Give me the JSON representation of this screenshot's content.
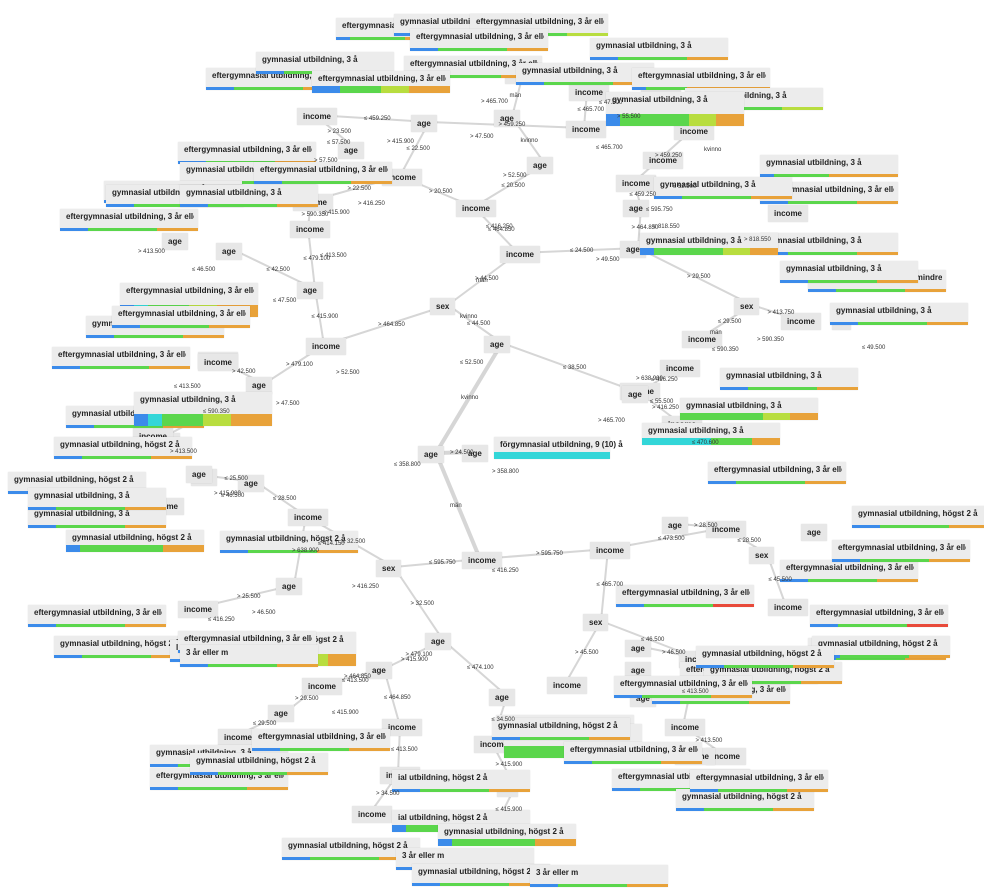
{
  "colors": {
    "blue": "#3b8bea",
    "cyan": "#33d6d8",
    "teal": "#46c9b8",
    "green": "#5bd64c",
    "lime": "#b8dd3f",
    "orange": "#e8a23a",
    "red": "#e84a3a",
    "edge": "#d6d6d6",
    "node_bg": "#e7e7e7"
  },
  "nodes": [
    {
      "id": "root",
      "label": "age"
    },
    {
      "id": "n_age_sm",
      "label": "age"
    },
    {
      "id": "n_top_income",
      "label": "income"
    },
    {
      "id": "n_top_sex",
      "label": "sex"
    },
    {
      "id": "n_top_age",
      "label": "age"
    },
    {
      "id": "n_k_income",
      "label": "income"
    },
    {
      "id": "n_k_age1",
      "label": "age"
    },
    {
      "id": "n_k_age2",
      "label": "age"
    },
    {
      "id": "n_k_income2",
      "label": "income"
    },
    {
      "id": "n_k_income3",
      "label": "income"
    },
    {
      "id": "n_k_age3",
      "label": "age"
    },
    {
      "id": "n_k_income4",
      "label": "income"
    },
    {
      "id": "n_k_age4",
      "label": "age"
    },
    {
      "id": "n_m_income",
      "label": "income"
    },
    {
      "id": "n_m_income2",
      "label": "income"
    },
    {
      "id": "n_m_income3",
      "label": "income"
    },
    {
      "id": "n_m_age",
      "label": "age"
    },
    {
      "id": "n_m_income4",
      "label": "income"
    },
    {
      "id": "n_m_age2",
      "label": "age"
    },
    {
      "id": "n_m_income5",
      "label": "income"
    },
    {
      "id": "n_m_income6",
      "label": "income"
    },
    {
      "id": "n_m_income7",
      "label": "income"
    },
    {
      "id": "n_m_age3",
      "label": "age"
    },
    {
      "id": "n_m_income8",
      "label": "income"
    },
    {
      "id": "n_r_age",
      "label": "age"
    },
    {
      "id": "n_r_income",
      "label": "income"
    },
    {
      "id": "n_r_sex",
      "label": "sex"
    },
    {
      "id": "n_r_income2",
      "label": "income"
    },
    {
      "id": "n_r_income3",
      "label": "income"
    },
    {
      "id": "n_r_income4",
      "label": "in"
    },
    {
      "id": "n_r_age2",
      "label": "age"
    },
    {
      "id": "n_r_age3",
      "label": "age"
    },
    {
      "id": "n_r_income5",
      "label": "income"
    },
    {
      "id": "n_r_income6",
      "label": "income"
    },
    {
      "id": "n_r_income7",
      "label": "income"
    },
    {
      "id": "n_r_income8",
      "label": "income"
    },
    {
      "id": "n_r_income9",
      "label": "income"
    },
    {
      "id": "n_r_income10",
      "label": "income"
    },
    {
      "id": "n_r_age4",
      "label": "age"
    },
    {
      "id": "n_b_income",
      "label": "income"
    },
    {
      "id": "n_b_sex",
      "label": "sex"
    },
    {
      "id": "n_b_income2",
      "label": "income"
    },
    {
      "id": "n_b_age",
      "label": "age"
    },
    {
      "id": "n_b_age2",
      "label": "age"
    },
    {
      "id": "n_b_age3",
      "label": "age"
    },
    {
      "id": "n_b_income3",
      "label": "income"
    },
    {
      "id": "n_b_age4",
      "label": "age"
    },
    {
      "id": "n_b_income4",
      "label": "income"
    },
    {
      "id": "n_b_age5",
      "label": "age"
    },
    {
      "id": "n_b_income5",
      "label": "income"
    },
    {
      "id": "n_b_age6",
      "label": "age"
    },
    {
      "id": "n_b_income6",
      "label": "income"
    },
    {
      "id": "n_b_age7",
      "label": "age"
    },
    {
      "id": "n_b_income7",
      "label": "income"
    },
    {
      "id": "n_b_income8",
      "label": "income"
    },
    {
      "id": "n_b_income9",
      "label": "income"
    },
    {
      "id": "n_b_income10",
      "label": "income"
    },
    {
      "id": "n_b_income11",
      "label": "income"
    },
    {
      "id": "n_b_income12",
      "label": "ne"
    },
    {
      "id": "n_b_income13",
      "label": "income"
    },
    {
      "id": "n_b_income14",
      "label": "income"
    },
    {
      "id": "n_br_income",
      "label": "income"
    },
    {
      "id": "n_br_income2",
      "label": "income"
    },
    {
      "id": "n_br_sex",
      "label": "sex"
    },
    {
      "id": "n_br_age",
      "label": "age"
    },
    {
      "id": "n_br_sex2",
      "label": "sex"
    },
    {
      "id": "n_br_income3",
      "label": "income"
    },
    {
      "id": "n_br_income4",
      "label": "income"
    },
    {
      "id": "n_br_age2",
      "label": "age"
    },
    {
      "id": "n_br_income5",
      "label": "income"
    },
    {
      "id": "n_br_income6",
      "label": "income"
    },
    {
      "id": "n_br_age3",
      "label": "age"
    },
    {
      "id": "n_br_age4",
      "label": "age"
    },
    {
      "id": "n_br_income7",
      "label": "income"
    },
    {
      "id": "n_br_age5",
      "label": "age"
    },
    {
      "id": "n_br_income8",
      "label": "income"
    },
    {
      "id": "n_l_age",
      "label": "age"
    },
    {
      "id": "n_l_age2",
      "label": "age"
    },
    {
      "id": "n_l_income",
      "label": "income"
    },
    {
      "id": "n_l_income2",
      "label": "income"
    }
  ],
  "leaves": [
    {
      "id": "L_forgym",
      "label": "förgymnasial utbildning, 9 (10) å"
    },
    {
      "id": "L1",
      "label": "eftergymnasial utbildning, 3 år eller m"
    },
    {
      "id": "L2",
      "label": "gymnasial utbildning, 3 å"
    },
    {
      "id": "L3",
      "label": "eftergymnasial utbildning, 3 år eller m"
    },
    {
      "id": "L4",
      "label": "gymnasial utbildning, 3 å"
    },
    {
      "id": "L5",
      "label": "eftergymnasial utbildning, 3 år eller m"
    },
    {
      "id": "L6",
      "label": "gymnasial utbildning, 3 å"
    },
    {
      "id": "L7",
      "label": "eftergymnasial utbildning, 3 år eller m"
    },
    {
      "id": "L8",
      "label": "gymnasial utbildning, 3 å"
    },
    {
      "id": "L9",
      "label": "eftergymnasial utbildning, 3 år eller m"
    },
    {
      "id": "L10",
      "label": "gymnasial utbildning, 3 å"
    },
    {
      "id": "L11",
      "label": "eftergymnasial utbildning, 3 år eller m"
    },
    {
      "id": "L12",
      "label": "gymnasial utbildning, 3 å"
    },
    {
      "id": "L13",
      "label": "eftergymnasial utbildning, 3 år eller m"
    },
    {
      "id": "L14",
      "label": "gymnasial utbildning, 3 å"
    },
    {
      "id": "L15",
      "label": "eftergymnasial utbildning, 3 år eller m"
    },
    {
      "id": "L16",
      "label": "gymnasial utbildning, 3 å"
    },
    {
      "id": "L17",
      "label": "eftergymnasial utbildning, 3 år eller m"
    },
    {
      "id": "L18",
      "label": "gymnasial utbildning, 3 å"
    },
    {
      "id": "L19",
      "label": "eftergymnasial utbildning, 3 år eller m"
    },
    {
      "id": "L20",
      "label": "gymnasial utbildning, 3 å"
    },
    {
      "id": "L21",
      "label": "gymnasial utbildning, 3 å"
    },
    {
      "id": "L22",
      "label": "eftergymnasial utbildning, 3 år eller m"
    },
    {
      "id": "L23",
      "label": "gymnasial utbildning, 3 å"
    },
    {
      "id": "L24",
      "label": "eftergymnasial utbildning, mindre än 3 å"
    },
    {
      "id": "L25",
      "label": "gymnasial utbildning, 3 å"
    },
    {
      "id": "L26",
      "label": "gymnasial utbildning, 3 å"
    },
    {
      "id": "L27",
      "label": "gymnasial utbildning, 3 å"
    },
    {
      "id": "L28",
      "label": "gymnasial utbildning, 3 å"
    },
    {
      "id": "L29",
      "label": "gymnasial utbildning, 3 å"
    },
    {
      "id": "L30",
      "label": "gymnasial utbildning, 3 å"
    },
    {
      "id": "L31",
      "label": "eftergymnasial utbildning, 3 år eller m"
    },
    {
      "id": "L32",
      "label": "eftergymnasial utbildning, 3 år eller m"
    },
    {
      "id": "L33",
      "label": "gymnasial utbildning, 3 å"
    },
    {
      "id": "L34",
      "label": "eftergymnasial utbildning, 3 år eller m"
    },
    {
      "id": "L35",
      "label": "gymnasial utbildning, 3 å"
    },
    {
      "id": "L36",
      "label": "eftergymnasial utbildning, 3 år eller m"
    },
    {
      "id": "L37",
      "label": "gymnasial utbildning, 3 å"
    },
    {
      "id": "L38",
      "label": "gymnasial utbildning, högst 2 å"
    },
    {
      "id": "L39",
      "label": "gymnasial utbildning, högst 2 å"
    },
    {
      "id": "L40",
      "label": "gymnasial utbildning, 3 å"
    },
    {
      "id": "L41",
      "label": "gymnasial utbildning, högst 2 å"
    },
    {
      "id": "L42",
      "label": "eftergymnasial utbildning, 3 år eller m"
    },
    {
      "id": "L43",
      "label": "gymnasial utbildning, högst 2 å"
    },
    {
      "id": "L44",
      "label": "gymnasial utbildning, högst 2 å"
    },
    {
      "id": "L45",
      "label": "lldning, 3 år eller m"
    },
    {
      "id": "L46",
      "label": "gymnasial utbildning, 3 å"
    },
    {
      "id": "L47",
      "label": "eftergymnasial utbildning, 3 år eller m"
    },
    {
      "id": "L48",
      "label": "gymnasial utbildning, högst 2 å"
    },
    {
      "id": "L49",
      "label": "eftergymnasial utbildning, 3 år eller m"
    },
    {
      "id": "L50",
      "label": "ial utbildning, högst 2 å"
    },
    {
      "id": "L51",
      "label": "ial utbildning, högst 2 å"
    },
    {
      "id": "L52",
      "label": "gymnasial utbildning, högst 2 å"
    },
    {
      "id": "L53",
      "label": "gymnasial utbildning, högst 2 å"
    },
    {
      "id": "L54",
      "label": "3 år eller m"
    },
    {
      "id": "L55",
      "label": "gymnasial utbildning, högst 2 å"
    },
    {
      "id": "L56",
      "label": "3 år eller m"
    },
    {
      "id": "L57",
      "label": "eftergymnasial utbildning, 3 år eller m"
    },
    {
      "id": "L58",
      "label": "gymnasial utbildning, högst 2 å"
    },
    {
      "id": "L59",
      "label": "eftergymnasial utbildning, 3 år eller m"
    },
    {
      "id": "L60",
      "label": "gymnasial utbildning, högst 2 å"
    },
    {
      "id": "L61",
      "label": "eftergymnasial utbildning, 3 år eller m"
    },
    {
      "id": "L62",
      "label": "gymnasial utbildning, högst 2 å"
    },
    {
      "id": "L63",
      "label": "eftergymnasial utbildning, 3 år eller m"
    },
    {
      "id": "L64",
      "label": "eftergymnasial utbildning, 3 år eller m"
    },
    {
      "id": "L65",
      "label": "eftergymnasial utbildning, 3 år eller m"
    },
    {
      "id": "L66",
      "label": "gymnasial utbildning, högst 2 å"
    },
    {
      "id": "L67",
      "label": "eftergymnasial utbildning, 3 år eller m"
    },
    {
      "id": "L68",
      "label": "eftergymnasial utbildning, 3 år eller m"
    },
    {
      "id": "L69",
      "label": "eftergymnasial utbildning, 3 år eller m"
    },
    {
      "id": "L70",
      "label": "eftergymnasial utbildning, 3 år eller m"
    },
    {
      "id": "L71",
      "label": "gymnasial utbildning, högst 2 å"
    },
    {
      "id": "L72",
      "label": "gymnasial utbildning, högst 2 å"
    },
    {
      "id": "L73",
      "label": "eftergymnasial utbildning, 3 år eller m"
    },
    {
      "id": "L74",
      "label": "gymnasial utbildning, högst 2 å"
    },
    {
      "id": "L75",
      "label": "eftergymnasial utbildning, 3 år eller m"
    },
    {
      "id": "L76",
      "label": "eftergymnasial utbildning, 3 år eller m"
    },
    {
      "id": "L77",
      "label": "gymnasial utbildning, högst 2 å"
    },
    {
      "id": "L78",
      "label": "3 år eller m"
    },
    {
      "id": "L79",
      "label": "gymnasial utbildning, 3 å"
    },
    {
      "id": "L80",
      "label": "gymnasial utbildning, 3 å"
    },
    {
      "id": "L81",
      "label": "eftergymnasial utbildning, 3 år eller m"
    }
  ],
  "edge_labels": [
    "kvinno",
    "män",
    "> 24.500",
    "≤ 44.500",
    "≤ 38.500",
    "> 44.500",
    "> 464.850",
    "≤ 464.850",
    "≤ 24.500",
    "> 20.500",
    "≤ 20.500",
    "> 22.500",
    "≤ 22.500",
    "≤ 459.250",
    "> 459.250",
    "> 23.500",
    "kvinno",
    "män",
    "≤ 465.700",
    "> 464.850",
    "≤ 459.250",
    "> 459.250",
    "> 29.500",
    "≤ 29.500",
    "> 413.750",
    "≤ 416.250",
    "> 416.250",
    "≤ 415.900",
    "> 479.100",
    "≤ 479.100",
    "≤ 42.500",
    "> 42.500",
    "≤ 590.350",
    "> 590.350",
    "≤ 595.750",
    "> 595.750",
    "≤ 32.500",
    "> 32.500",
    "≤ 28.500",
    "> 638.900",
    "≤ 25.500",
    "> 25.500",
    "> 479.100",
    "≤ 474.100",
    "> 464.850",
    "≤ 464.850",
    "> 29.500",
    "≤ 29.500",
    "≤ 413.500",
    "> 34.500",
    "≤ 34.500",
    "> 415.900",
    "≤ 415.900",
    "≤ 473.500",
    "≤ 465.700",
    "> 28.500",
    "≤ 28.500",
    "≤ 45.500",
    "> 45.500",
    "≤ 46.500",
    "> 46.500",
    "≤ 413.500",
    "> 413.500",
    "≤ 358.800",
    "> 358.800",
    "män",
    "kvinno",
    "≤ 52.500",
    "> 52.500",
    "≤ 47.500",
    "> 47.500",
    "≤ 413.500",
    "> 413.500",
    "≤ 46.500",
    "≤ 413.500",
    "> 413.500",
    "≤ 416.250",
    "> 416.250",
    "≤ 415.900",
    "> 415.900",
    "≤ 57.500",
    "> 57.500",
    "≤ 465.700",
    "> 465.700",
    "≤ 47.500",
    "> 47.500",
    "≤ 52.500",
    "> 52.500",
    "kvinno",
    "män",
    "≤ 590.350",
    "> 590.350",
    "≤ 49.500",
    "> 49.500",
    "≤ 818.550",
    "> 818.550",
    "≤ 55.500",
    "> 55.500",
    "≤ 595.750",
    "> 638.900",
    "≤ 470.600",
    "> 465.700",
    "≤ 416.250",
    "> 416.250",
    "≤ 414.150",
    "> 415.900",
    "≤ 46.500",
    "> 46.500",
    "≤ 416.250",
    "> 415.900",
    "≤ 415.900",
    "≤ 413.500"
  ]
}
